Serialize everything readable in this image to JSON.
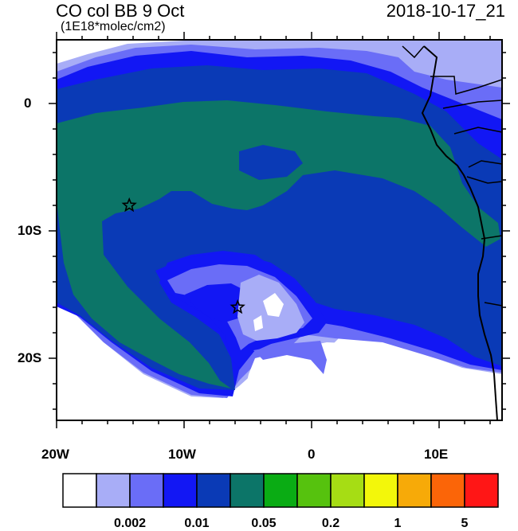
{
  "header": {
    "title": "CO col BB 9 Oct",
    "units": "(1E18*molec/cm2)",
    "timestamp": "2018-10-17_21"
  },
  "axes": {
    "lat_labels": [
      "0",
      "10S",
      "20S"
    ],
    "lon_labels": [
      "20W",
      "10W",
      "0",
      "10E"
    ]
  },
  "legend": {
    "bin_colors": [
      "#ffffff",
      "#a8adf7",
      "#6a6df7",
      "#1217f4",
      "#0a3ab6",
      "#0c7568",
      "#0aac14",
      "#56c20e",
      "#a6dd14",
      "#f3f70a",
      "#f7aa08",
      "#fb6508",
      "#ff1616"
    ],
    "labels": [
      "0.002",
      "0.01",
      "0.05",
      "0.2",
      "1",
      "5"
    ]
  },
  "markers": [
    {
      "name": "star-west",
      "lon": -14.3,
      "lat": -8.0
    },
    {
      "name": "star-center",
      "lon": -5.8,
      "lat": -16.0
    }
  ],
  "colors": {
    "level1": "#a8adf7",
    "level2": "#6a6df7",
    "level3": "#1217f4",
    "level4": "#0a3ab6",
    "level5": "#0c7568"
  }
}
